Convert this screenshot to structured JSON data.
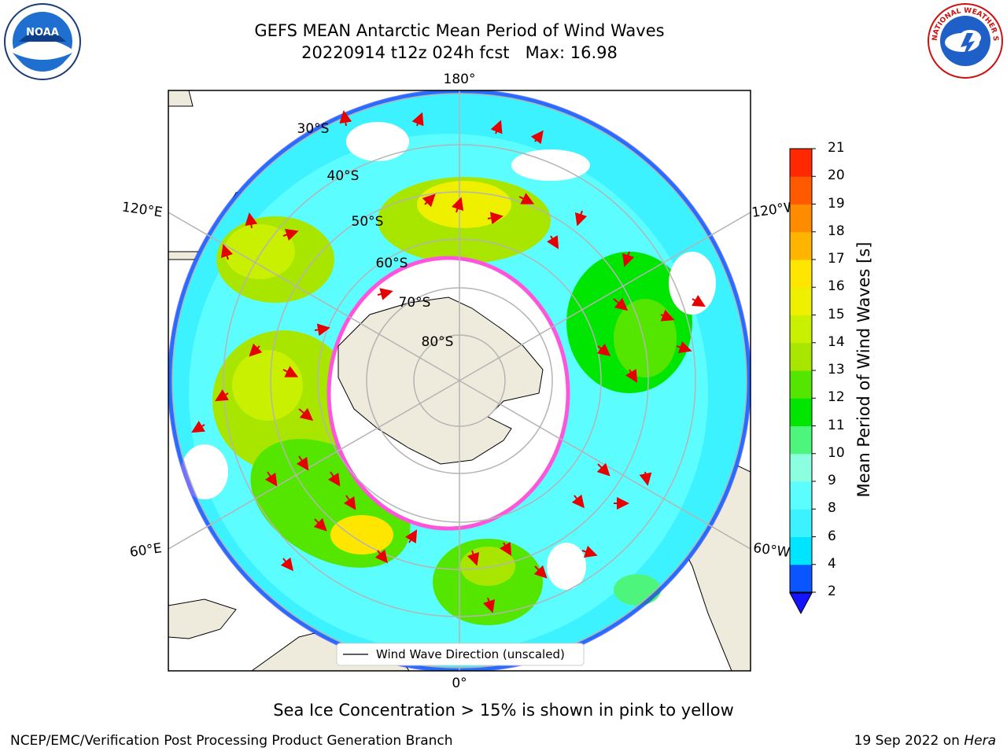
{
  "title_line1": "GEFS MEAN Antarctic Mean Period of Wind Waves",
  "title_line2": "20220914 t12z 024h fcst   Max: 16.98",
  "colorbar": {
    "label": "Mean Period of Wind Waves [s]",
    "ticks": [
      "2",
      "4",
      "6",
      "8",
      "9",
      "10",
      "11",
      "12",
      "13",
      "14",
      "15",
      "16",
      "17",
      "18",
      "19",
      "20",
      "21"
    ],
    "colors": [
      "#0a55ff",
      "#00e5ff",
      "#3cf2ff",
      "#5cfdff",
      "#8cffe0",
      "#4df57c",
      "#00e600",
      "#55e600",
      "#a8e600",
      "#c8f000",
      "#eef000",
      "#ffe600",
      "#ffb400",
      "#ff8c00",
      "#ff5a00",
      "#ff2800"
    ],
    "extend_color": "#1414ff"
  },
  "map": {
    "lon_labels": {
      "top": "180°",
      "left_upper": "120°E",
      "right_upper": "120°W",
      "left_lower": "60°E",
      "right_lower": "60°W",
      "bottom": "0°"
    },
    "lat_labels": [
      "30°S",
      "40°S",
      "50°S",
      "60°S",
      "70°S",
      "80°S"
    ],
    "legend": "Wind Wave Direction (unscaled)",
    "colors": {
      "land": "#efebdc",
      "sea_ice": "#ff55dd",
      "arrow": "#e60000",
      "grid": "#b4b4b4"
    }
  },
  "note": "Sea Ice Concentration > 15% is shown in pink to yellow",
  "footer_left": "NCEP/EMC/Verification Post Processing Product Generation Branch",
  "footer_right_date": "19 Sep 2022 on ",
  "footer_right_machine": "Hera",
  "logos": {
    "noaa": "NOAA",
    "nws": "NATIONAL WEATHER SERVICE"
  }
}
